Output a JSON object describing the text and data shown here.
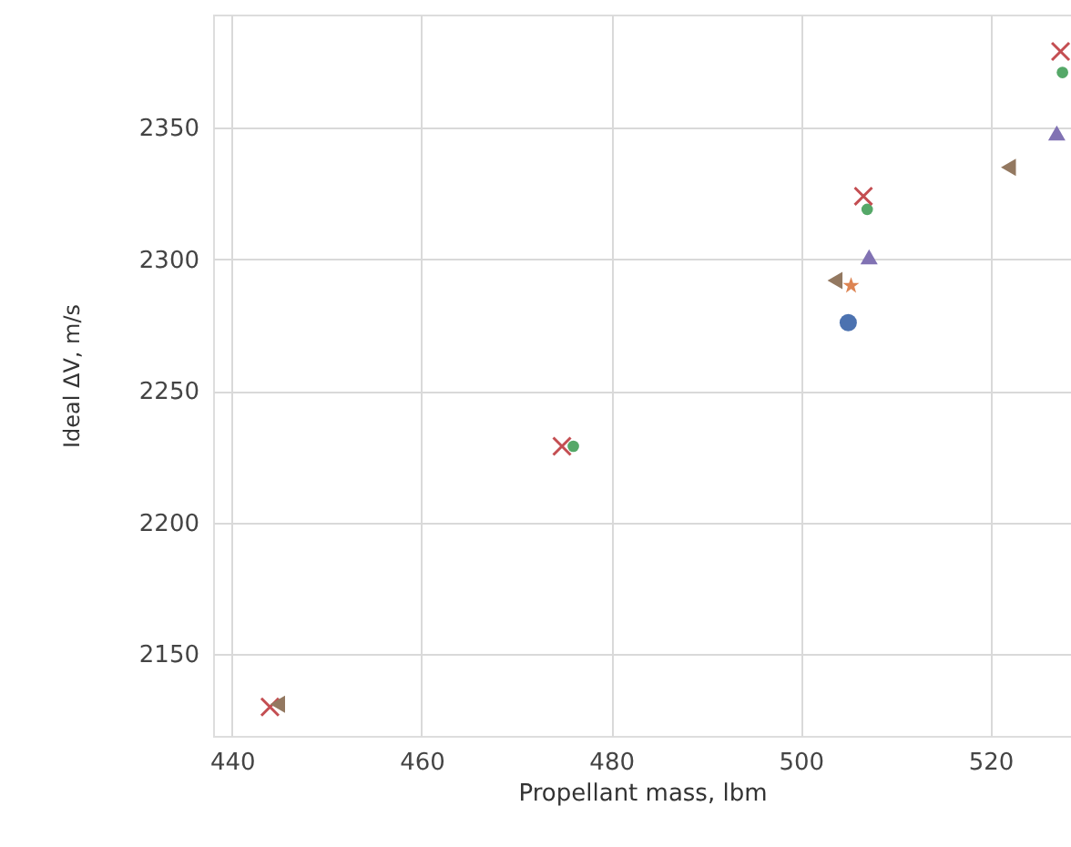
{
  "chart_data": {
    "type": "scatter",
    "xlabel": "Propellant mass, lbm",
    "ylabel": "Ideal ΔV, m/s",
    "xlim": [
      438,
      528.5
    ],
    "ylim": [
      2119,
      2393
    ],
    "xticks": [
      440,
      460,
      480,
      500,
      520
    ],
    "yticks": [
      2150,
      2200,
      2250,
      2300,
      2350
    ],
    "grid": true,
    "series": [
      {
        "color": "#4c72b0",
        "marker": "circle",
        "x": [
          505
        ],
        "values": [
          2276
        ]
      },
      {
        "color": "#dd8452",
        "marker": "star",
        "x": [
          505.3
        ],
        "values": [
          2290
        ]
      },
      {
        "color": "#55a868",
        "marker": "circle",
        "x": [
          476,
          507,
          527.6
        ],
        "values": [
          2229,
          2319,
          2371
        ]
      },
      {
        "color": "#c44e52",
        "marker": "cross",
        "x": [
          444,
          474.8,
          506.6,
          527.4
        ],
        "values": [
          2130,
          2229,
          2324,
          2379
        ]
      },
      {
        "color": "#8172b3",
        "marker": "triangle",
        "x": [
          507.2,
          527
        ],
        "values": [
          2301,
          2348
        ]
      },
      {
        "color": "#937860",
        "marker": "triangle-left",
        "x": [
          444.8,
          503.6,
          521.9
        ],
        "values": [
          2131,
          2292,
          2335
        ]
      }
    ]
  }
}
